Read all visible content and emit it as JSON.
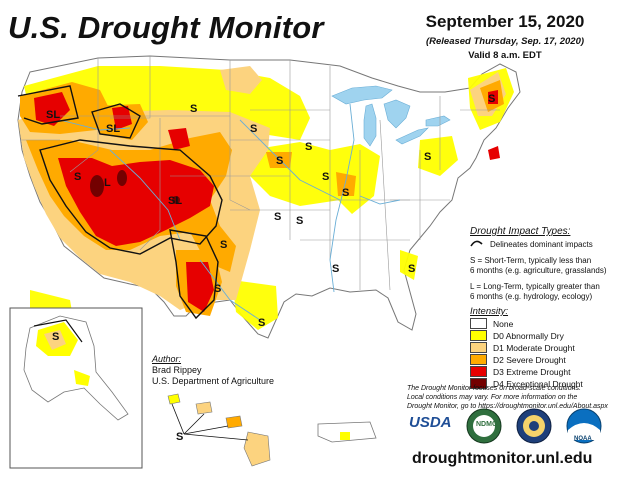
{
  "header": {
    "title": "U.S. Drought Monitor",
    "date": "September 15, 2020",
    "released": "(Released Thursday, Sep. 17, 2020)",
    "valid": "Valid 8 a.m. EDT"
  },
  "impact_legend": {
    "title": "Drought Impact Types:",
    "dominant": "Delineates dominant impacts",
    "short_term_1": "S = Short-Term, typically less than",
    "short_term_2": "6 months (e.g. agriculture, grasslands)",
    "long_term_1": "L = Long-Term, typically greater than",
    "long_term_2": "6 months (e.g. hydrology, ecology)"
  },
  "intensity": {
    "title": "Intensity:",
    "levels": [
      {
        "label": "None",
        "color": "#ffffff"
      },
      {
        "label": "D0 Abnormally Dry",
        "color": "#ffff00"
      },
      {
        "label": "D1 Moderate Drought",
        "color": "#fcd37f"
      },
      {
        "label": "D2 Severe Drought",
        "color": "#ffaa00"
      },
      {
        "label": "D3 Extreme Drought",
        "color": "#e60000"
      },
      {
        "label": "D4 Exceptional Drought",
        "color": "#730000"
      }
    ]
  },
  "author": {
    "label": "Author:",
    "name": "Brad Rippey",
    "org": "U.S. Department of Agriculture"
  },
  "note": {
    "line1": "The Drought Monitor focuses on broad-scale conditions.",
    "line2": "Local conditions may vary. For more information on the",
    "line3": "Drought Monitor, go to https://droughtmonitor.unl.edu/About.aspx"
  },
  "logos": {
    "usda": "USDA",
    "ndmc": "NDMC",
    "doc": "",
    "noaa": "NOAA"
  },
  "url": "droughtmonitor.unl.edu",
  "map_labels": {
    "sl_washington": "SL",
    "sl_idaho": "SL",
    "s_montana": "S",
    "s_dakota": "S",
    "s_minnesota": "S",
    "s_nebraska": "S",
    "s_kansas": "S",
    "s_iowa": "S",
    "s_illinois": "S",
    "s_pennsylvania": "S",
    "s_maine": "S",
    "s_utah": "S",
    "sl_southwest": "SL",
    "s_oklahoma": "S",
    "s_arkansas": "S",
    "s_texas_north": "S",
    "s_texas_west": "S",
    "s_texas_south": "S",
    "s_georgia": "S",
    "s_alaska": "S",
    "s_hawaii": "S",
    "l_southwest": "L"
  },
  "colors": {
    "water": "#9fd3ef",
    "state_line": "#aaaaaa",
    "river": "#6aaed6",
    "d0": "#ffff00",
    "d1": "#fcd37f",
    "d2": "#ffaa00",
    "d3": "#e60000",
    "d4": "#730000"
  }
}
